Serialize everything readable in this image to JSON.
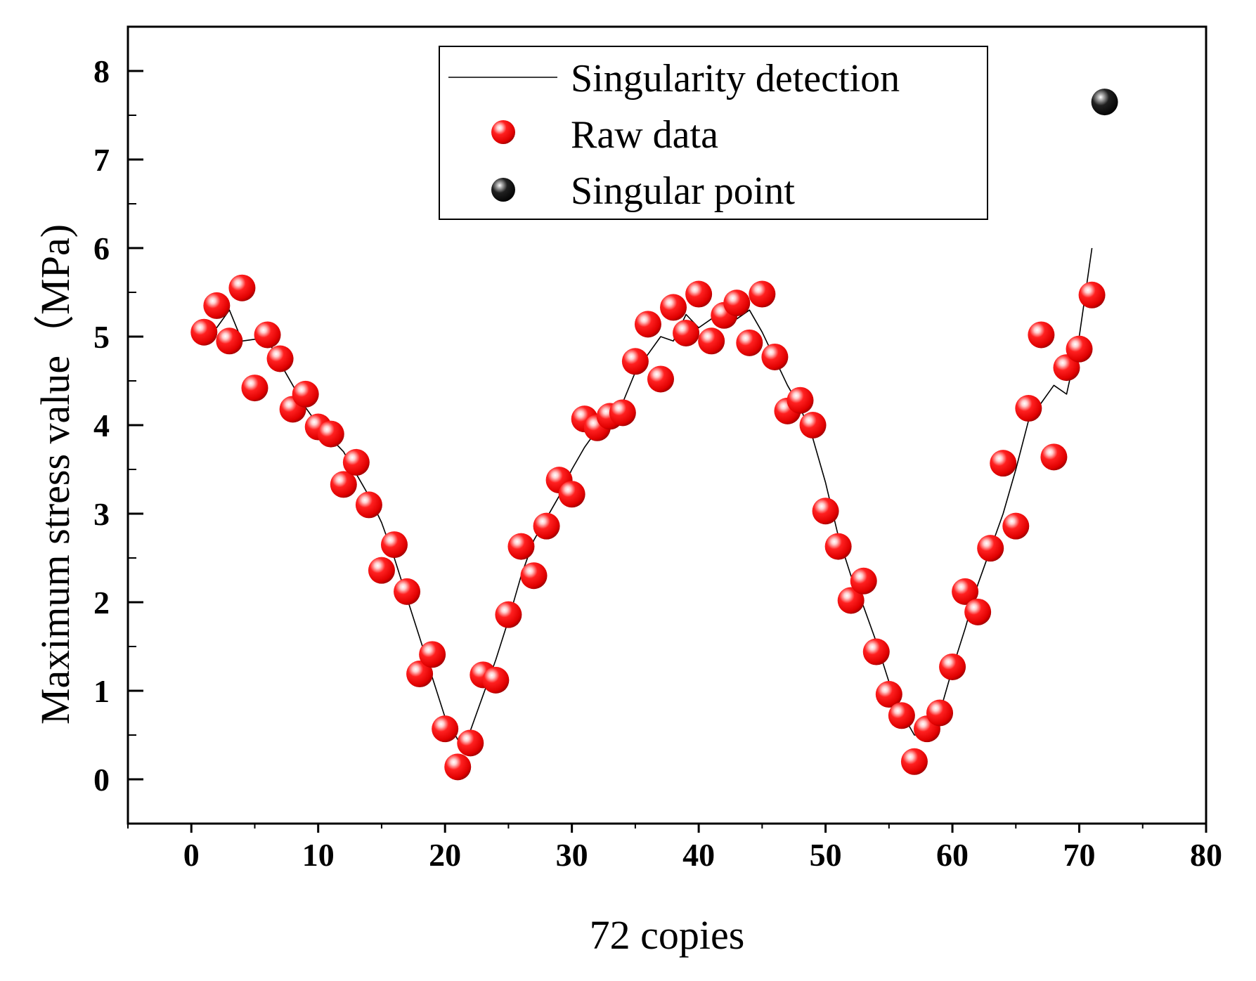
{
  "chart_data": {
    "type": "scatter",
    "title": "",
    "xlabel": "72 copies",
    "ylabel": "Maximum stress value（MPa)",
    "xlim": [
      -5,
      80
    ],
    "ylim": [
      -0.5,
      8.5
    ],
    "x_ticks": [
      "0",
      "10",
      "20",
      "30",
      "40",
      "50",
      "60",
      "70",
      "80"
    ],
    "y_ticks": [
      "0",
      "1",
      "2",
      "3",
      "4",
      "5",
      "6",
      "7",
      "8"
    ],
    "legend_position": "top-right",
    "colors": {
      "raw": "#ff0000",
      "line": "#000000",
      "singular": "#000000"
    },
    "series": [
      {
        "name": "Singularity detection",
        "kind": "line",
        "x": [
          1,
          2,
          3,
          4,
          5,
          6,
          7,
          8,
          9,
          10,
          11,
          12,
          13,
          14,
          15,
          16,
          17,
          18,
          19,
          20,
          21,
          22,
          23,
          24,
          25,
          26,
          27,
          28,
          29,
          30,
          31,
          32,
          33,
          34,
          35,
          36,
          37,
          38,
          39,
          40,
          41,
          42,
          43,
          44,
          45,
          46,
          47,
          48,
          49,
          50,
          51,
          52,
          53,
          54,
          55,
          56,
          57,
          58,
          59,
          60,
          61,
          62,
          63,
          64,
          65,
          66,
          67,
          68,
          69,
          70,
          71
        ],
        "y": [
          5.05,
          5.1,
          5.3,
          4.95,
          4.97,
          4.97,
          4.7,
          4.45,
          4.2,
          4.0,
          3.85,
          3.7,
          3.45,
          3.2,
          2.9,
          2.5,
          2.05,
          1.6,
          1.15,
          0.7,
          0.45,
          0.55,
          0.95,
          1.35,
          1.8,
          2.3,
          2.7,
          2.95,
          3.2,
          3.5,
          3.75,
          3.95,
          4.1,
          4.25,
          4.6,
          4.8,
          5.0,
          4.95,
          5.25,
          5.1,
          5.2,
          5.25,
          5.2,
          5.3,
          5.05,
          4.75,
          4.45,
          4.2,
          3.85,
          3.35,
          2.75,
          2.3,
          1.95,
          1.55,
          1.1,
          0.75,
          0.5,
          0.5,
          0.75,
          1.25,
          1.7,
          2.2,
          2.6,
          3.0,
          3.5,
          4.05,
          4.25,
          4.45,
          4.35,
          5.0,
          6.0
        ]
      },
      {
        "name": "Raw data",
        "kind": "scatter",
        "x": [
          1,
          2,
          3,
          4,
          5,
          6,
          7,
          8,
          9,
          10,
          11,
          12,
          13,
          14,
          15,
          16,
          17,
          18,
          19,
          20,
          21,
          22,
          23,
          24,
          25,
          26,
          27,
          28,
          29,
          30,
          31,
          32,
          33,
          34,
          35,
          36,
          37,
          38,
          39,
          40,
          41,
          42,
          43,
          44,
          45,
          46,
          47,
          48,
          49,
          50,
          51,
          52,
          53,
          54,
          55,
          56,
          57,
          58,
          59,
          60,
          61,
          62,
          63,
          64,
          65,
          66,
          67,
          68,
          69,
          70,
          71
        ],
        "y": [
          5.05,
          5.35,
          4.95,
          5.55,
          4.42,
          5.02,
          4.75,
          4.18,
          4.35,
          3.98,
          3.9,
          3.33,
          3.58,
          3.1,
          2.36,
          2.65,
          2.12,
          1.19,
          1.41,
          0.57,
          0.14,
          0.41,
          1.18,
          1.12,
          1.86,
          2.63,
          2.3,
          2.86,
          3.38,
          3.22,
          4.07,
          3.97,
          4.1,
          4.14,
          4.72,
          5.14,
          4.52,
          5.33,
          5.04,
          5.48,
          4.95,
          5.24,
          5.38,
          4.93,
          5.48,
          4.77,
          4.16,
          4.28,
          4.0,
          3.03,
          2.63,
          2.02,
          2.24,
          1.44,
          0.96,
          0.72,
          0.2,
          0.57,
          0.75,
          1.27,
          2.12,
          1.89,
          2.61,
          3.57,
          2.86,
          4.19,
          5.02,
          3.64,
          4.65,
          4.86,
          5.47
        ]
      },
      {
        "name": "Singular point",
        "kind": "scatter",
        "x": [
          72
        ],
        "y": [
          7.65
        ]
      }
    ]
  }
}
